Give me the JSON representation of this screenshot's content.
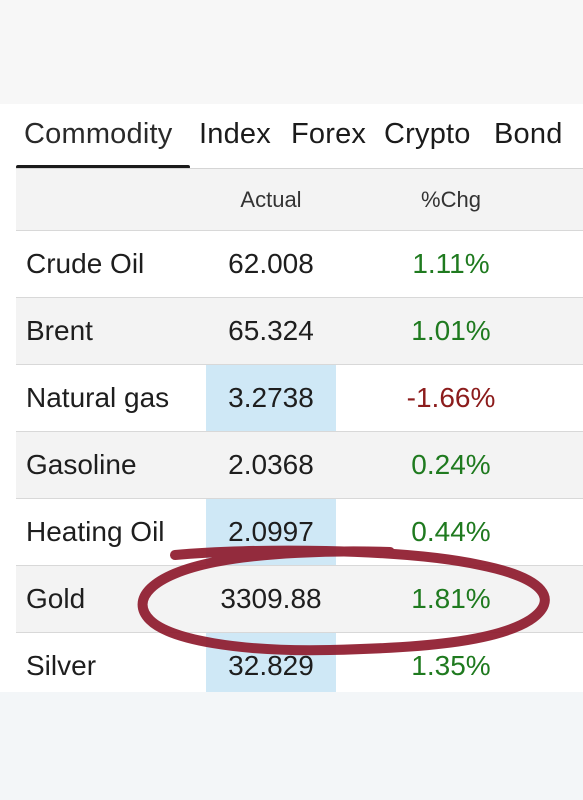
{
  "tabs": [
    "Commodity",
    "Index",
    "Forex",
    "Crypto",
    "Bond"
  ],
  "active_tab": "Commodity",
  "table": {
    "columns": [
      "",
      "Actual",
      "%Chg"
    ],
    "rows": [
      {
        "name": "Crude Oil",
        "actual": "62.008",
        "pct": "1.11%",
        "direction": "up"
      },
      {
        "name": "Brent",
        "actual": "65.324",
        "pct": "1.01%",
        "direction": "up"
      },
      {
        "name": "Natural gas",
        "actual": "3.2738",
        "pct": "-1.66%",
        "direction": "down"
      },
      {
        "name": "Gasoline",
        "actual": "2.0368",
        "pct": "0.24%",
        "direction": "up"
      },
      {
        "name": "Heating Oil",
        "actual": "2.0997",
        "pct": "0.44%",
        "direction": "up"
      },
      {
        "name": "Gold",
        "actual": "3309.88",
        "pct": "1.81%",
        "direction": "up"
      },
      {
        "name": "Silver",
        "actual": "32.829",
        "pct": "1.35%",
        "direction": "up"
      }
    ]
  },
  "colors": {
    "positive": "#1f7a1f",
    "negative": "#8c1c1c",
    "highlight": "#cfe8f6",
    "annotation": "#8e1a2c"
  }
}
